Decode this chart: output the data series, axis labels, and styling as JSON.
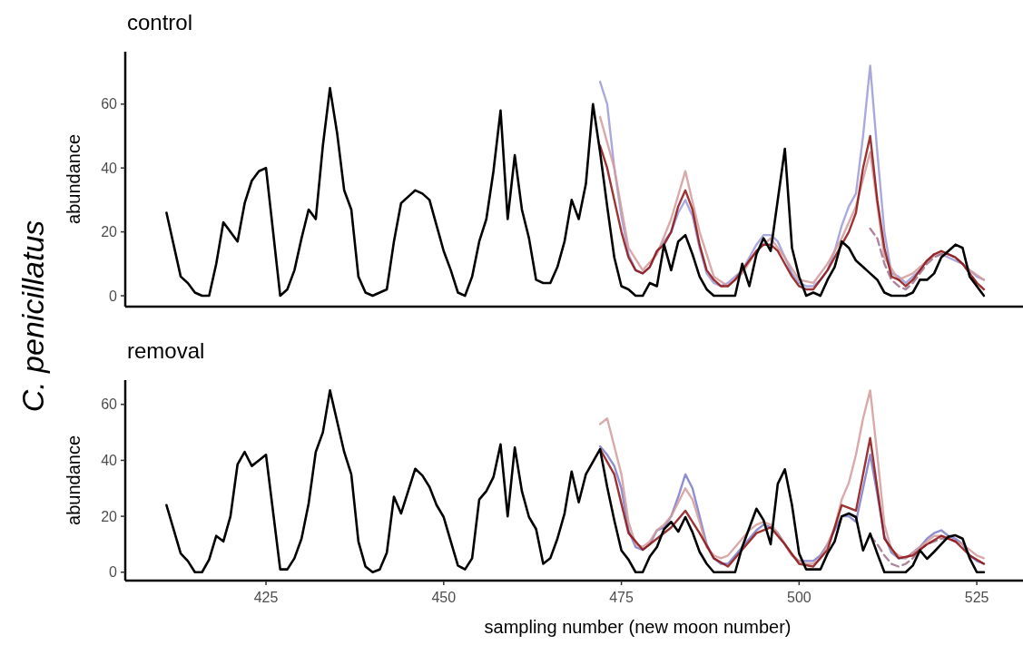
{
  "chart_data": [
    {
      "type": "line",
      "title": "control",
      "ylabel": "abundance",
      "annotations": [
        "C. penicillatus"
      ],
      "xlim": [
        405.2,
        531.5
      ],
      "ylim": [
        -3.4,
        76.4
      ],
      "yticks": [
        0,
        20,
        40,
        60
      ],
      "tick_labels": "y",
      "grid": false,
      "line_style": "solid",
      "series": [
        {
          "color": "#9a9ad8",
          "x": [
            472,
            473,
            474,
            475,
            476,
            477,
            478,
            479,
            480,
            481,
            482,
            483,
            484,
            485,
            486,
            487,
            488,
            489,
            490,
            491,
            492,
            493,
            494,
            495,
            496,
            497,
            498,
            499,
            500,
            501,
            502,
            503,
            504,
            505,
            506,
            507,
            508,
            509,
            510,
            511,
            512,
            513,
            514,
            515,
            516,
            517,
            518,
            519,
            520,
            521,
            522,
            523,
            524,
            525,
            526
          ],
          "values": [
            67,
            60,
            40,
            25,
            13,
            8,
            7,
            9,
            14,
            17,
            20,
            26,
            30,
            25,
            15,
            7,
            4,
            3,
            4,
            6,
            8,
            12,
            16,
            19,
            19,
            17,
            12,
            7,
            4,
            3,
            3,
            5,
            8,
            14,
            22,
            28,
            32,
            50,
            72,
            45,
            20,
            7,
            6,
            4,
            6,
            8,
            11,
            13,
            13,
            12,
            11,
            10,
            8,
            6,
            5
          ]
        },
        {
          "color": "#d49a9a",
          "x": [
            472,
            474,
            476,
            478,
            480,
            482,
            484,
            486,
            488,
            490,
            492,
            494,
            496,
            498,
            500,
            502,
            504,
            506,
            508,
            510,
            512,
            514,
            516,
            518,
            520,
            522,
            524,
            526
          ],
          "values": [
            56,
            40,
            15,
            8,
            13,
            24,
            39,
            20,
            6,
            3,
            7,
            14,
            18,
            12,
            5,
            4,
            10,
            18,
            28,
            45,
            12,
            5,
            7,
            11,
            14,
            12,
            8,
            5
          ]
        },
        {
          "color": "#a0708c",
          "line_style": "dashed",
          "x": [
            510,
            511,
            512,
            513,
            514,
            515,
            516,
            517,
            518,
            519,
            520,
            521,
            522,
            523,
            524,
            525
          ],
          "values": [
            21,
            18,
            10,
            5,
            3,
            2,
            4,
            7,
            10,
            12,
            13,
            13,
            12,
            10,
            7,
            4
          ]
        },
        {
          "color": "#8b1010",
          "x": [
            472,
            473,
            474,
            475,
            476,
            477,
            478,
            479,
            480,
            481,
            482,
            483,
            484,
            485,
            486,
            487,
            488,
            489,
            490,
            491,
            492,
            493,
            494,
            495,
            496,
            497,
            498,
            499,
            500,
            501,
            502,
            503,
            504,
            505,
            506,
            507,
            508,
            509,
            510,
            511,
            512,
            513,
            514,
            515,
            516,
            517,
            518,
            519,
            520,
            521,
            522,
            523,
            524,
            525,
            526
          ],
          "values": [
            47,
            40,
            30,
            20,
            12,
            8,
            7,
            9,
            14,
            16,
            20,
            28,
            33,
            27,
            16,
            8,
            5,
            3,
            3,
            5,
            8,
            11,
            14,
            16,
            16,
            14,
            10,
            6,
            3,
            2,
            2,
            5,
            8,
            12,
            16,
            20,
            26,
            40,
            50,
            30,
            15,
            6,
            5,
            3,
            5,
            8,
            11,
            13,
            14,
            13,
            12,
            10,
            7,
            4,
            2
          ]
        },
        {
          "color": "#000000",
          "x": [
            411,
            413,
            414,
            415,
            416,
            417,
            418,
            419,
            421,
            422,
            423,
            424,
            425,
            427,
            428,
            429,
            430,
            431,
            432,
            433,
            434,
            435,
            436,
            437,
            438,
            439,
            440,
            441,
            442,
            443,
            444,
            445,
            446,
            447,
            448,
            449,
            450,
            451,
            452,
            453,
            454,
            455,
            456,
            457,
            458,
            459,
            460,
            461,
            462,
            463,
            464,
            465,
            466,
            467,
            468,
            469,
            470,
            471,
            472,
            473,
            474,
            475,
            476,
            477,
            478,
            479,
            480,
            481,
            482,
            483,
            484,
            485,
            486,
            487,
            488,
            490,
            491,
            492,
            493,
            494,
            495,
            496,
            498,
            499,
            500,
            501,
            502,
            503,
            504,
            505,
            506,
            507,
            508,
            509,
            510,
            511,
            512,
            513,
            515,
            516,
            517,
            518,
            519,
            520,
            521,
            522,
            523,
            524,
            525,
            526
          ],
          "values": [
            26,
            6,
            4,
            1,
            0,
            0,
            10,
            23,
            17,
            29,
            36,
            39,
            40,
            0,
            2,
            8,
            18,
            27,
            24,
            47,
            65,
            51,
            33,
            27,
            6,
            1,
            0,
            1,
            2,
            17,
            29,
            31,
            33,
            32,
            30,
            22,
            14,
            8,
            1,
            0,
            6,
            17,
            24,
            39,
            58,
            24,
            44,
            27,
            18,
            5,
            4,
            4,
            9,
            17,
            30,
            24,
            35,
            60,
            45,
            28,
            12,
            3,
            2,
            0,
            0,
            4,
            3,
            16,
            8,
            17,
            19,
            13,
            6,
            2,
            0,
            0,
            0,
            10,
            3,
            13,
            18,
            14,
            46,
            15,
            6,
            0,
            1,
            0,
            5,
            9,
            17,
            15,
            11,
            9,
            7,
            5,
            1,
            0,
            0,
            1,
            5,
            5,
            7,
            12,
            14,
            16,
            15,
            6,
            3,
            0
          ]
        }
      ]
    },
    {
      "type": "line",
      "title": "removal",
      "ylabel": "abundance",
      "xlabel": "sampling number (new moon number)",
      "xlim": [
        405.2,
        531.5
      ],
      "xticks": [
        425,
        450,
        475,
        500,
        525
      ],
      "ylim": [
        -3,
        68.7
      ],
      "yticks": [
        0,
        20,
        40,
        60
      ],
      "grid": false,
      "line_style": "solid",
      "series": [
        {
          "color": "#7a7ac8",
          "x": [
            472,
            473,
            474,
            475,
            476,
            477,
            478,
            479,
            480,
            481,
            482,
            483,
            484,
            485,
            486,
            487,
            488,
            489,
            490,
            491,
            492,
            493,
            494,
            495,
            496,
            497,
            498,
            499,
            500,
            501,
            502,
            503,
            504,
            505,
            506,
            507,
            508,
            509,
            510,
            511,
            512,
            513,
            514,
            515,
            516,
            517,
            518,
            519,
            520,
            521,
            522,
            523,
            524,
            525,
            526
          ],
          "values": [
            45,
            42,
            38,
            30,
            15,
            9,
            8,
            10,
            15,
            16,
            20,
            27,
            35,
            30,
            20,
            10,
            5,
            3,
            3,
            6,
            9,
            12,
            15,
            17,
            16,
            14,
            10,
            6,
            4,
            4,
            4,
            6,
            10,
            15,
            20,
            20,
            18,
            30,
            42,
            28,
            13,
            7,
            5,
            5,
            7,
            9,
            12,
            14,
            15,
            13,
            12,
            10,
            6,
            4,
            3
          ]
        },
        {
          "color": "#d49a9a",
          "x": [
            472,
            473,
            474,
            475,
            476,
            477,
            478,
            479,
            480,
            481,
            482,
            483,
            484,
            485,
            486,
            487,
            488,
            489,
            490,
            491,
            492,
            493,
            494,
            495,
            496,
            497,
            498,
            499,
            500,
            501,
            502,
            503,
            504,
            505,
            506,
            507,
            508,
            509,
            510,
            511,
            512,
            513,
            514,
            515,
            516,
            517,
            518,
            519,
            520,
            521,
            522,
            523,
            524,
            525,
            526
          ],
          "values": [
            53,
            55,
            45,
            35,
            18,
            10,
            9,
            11,
            15,
            17,
            20,
            25,
            30,
            26,
            18,
            9,
            6,
            5,
            6,
            9,
            12,
            15,
            17,
            18,
            17,
            14,
            10,
            6,
            4,
            3,
            3,
            5,
            10,
            16,
            26,
            32,
            42,
            55,
            65,
            42,
            17,
            8,
            6,
            5,
            7,
            9,
            11,
            13,
            13,
            12,
            11,
            10,
            8,
            6,
            5
          ]
        },
        {
          "color": "#a0708c",
          "line_style": "dashed",
          "x": [
            510,
            511,
            512,
            513,
            514,
            515,
            516,
            517,
            518,
            519,
            520,
            521,
            522
          ],
          "values": [
            13,
            10,
            6,
            3,
            2,
            3,
            5,
            8,
            10,
            11,
            12,
            12,
            11
          ]
        },
        {
          "color": "#8b1010",
          "x": [
            472,
            474,
            476,
            478,
            480,
            482,
            484,
            486,
            488,
            490,
            492,
            494,
            496,
            498,
            500,
            502,
            504,
            506,
            508,
            510,
            512,
            514,
            516,
            518,
            520,
            522,
            524,
            526
          ],
          "values": [
            44,
            35,
            14,
            8,
            12,
            16,
            22,
            14,
            5,
            2,
            8,
            14,
            16,
            10,
            3,
            2,
            8,
            24,
            22,
            48,
            12,
            5,
            6,
            10,
            13,
            11,
            6,
            3
          ]
        },
        {
          "color": "#000000",
          "x": [
            411,
            413,
            414,
            415,
            416,
            417,
            418,
            419,
            420,
            421,
            422,
            423,
            424,
            425,
            427,
            428,
            429,
            430,
            431,
            432,
            433,
            434,
            435,
            436,
            437,
            438,
            439,
            440,
            441,
            442,
            443,
            444,
            445,
            446,
            447,
            448,
            449,
            450,
            451,
            452,
            453,
            454,
            455,
            456,
            457,
            458,
            459,
            460,
            461,
            462,
            463,
            464,
            465,
            466,
            467,
            468,
            469,
            470,
            472,
            473,
            474,
            475,
            476,
            477,
            478,
            479,
            480,
            481,
            482,
            483,
            484,
            485,
            486,
            487,
            488,
            490,
            491,
            492,
            494,
            495,
            496,
            497,
            498,
            499,
            500,
            501,
            502,
            503,
            504,
            505,
            506,
            507,
            508,
            509,
            510,
            511,
            512,
            515,
            516,
            517,
            518,
            519,
            520,
            521,
            522,
            523,
            524,
            525,
            526
          ],
          "values": [
            24,
            6.7,
            4,
            0,
            0,
            4.5,
            13,
            11,
            20,
            38.6,
            43,
            38,
            40,
            42,
            1,
            1,
            5,
            12,
            24.6,
            43,
            50,
            65,
            54,
            43,
            35,
            11,
            2,
            0,
            1,
            7,
            27,
            21,
            29,
            37,
            34.6,
            30.5,
            24,
            19.7,
            11,
            2.4,
            1,
            5,
            26,
            29,
            34,
            45.7,
            20,
            44.6,
            29,
            19.7,
            15.4,
            3,
            5,
            12,
            21,
            36,
            25,
            35,
            44,
            30.5,
            18.6,
            7.8,
            4.5,
            0,
            0,
            5.6,
            9,
            15.4,
            18,
            14.5,
            19.7,
            14.3,
            7.3,
            3,
            0,
            0,
            0,
            9,
            22.7,
            18.6,
            10,
            31.6,
            36.8,
            24,
            6.7,
            1,
            1,
            1,
            6.7,
            11,
            20,
            21,
            19.7,
            7.8,
            13.8,
            6.7,
            0,
            0,
            2.4,
            7.8,
            4.8,
            7.3,
            10,
            12.7,
            13.2,
            12,
            5,
            0,
            0
          ]
        }
      ]
    }
  ]
}
